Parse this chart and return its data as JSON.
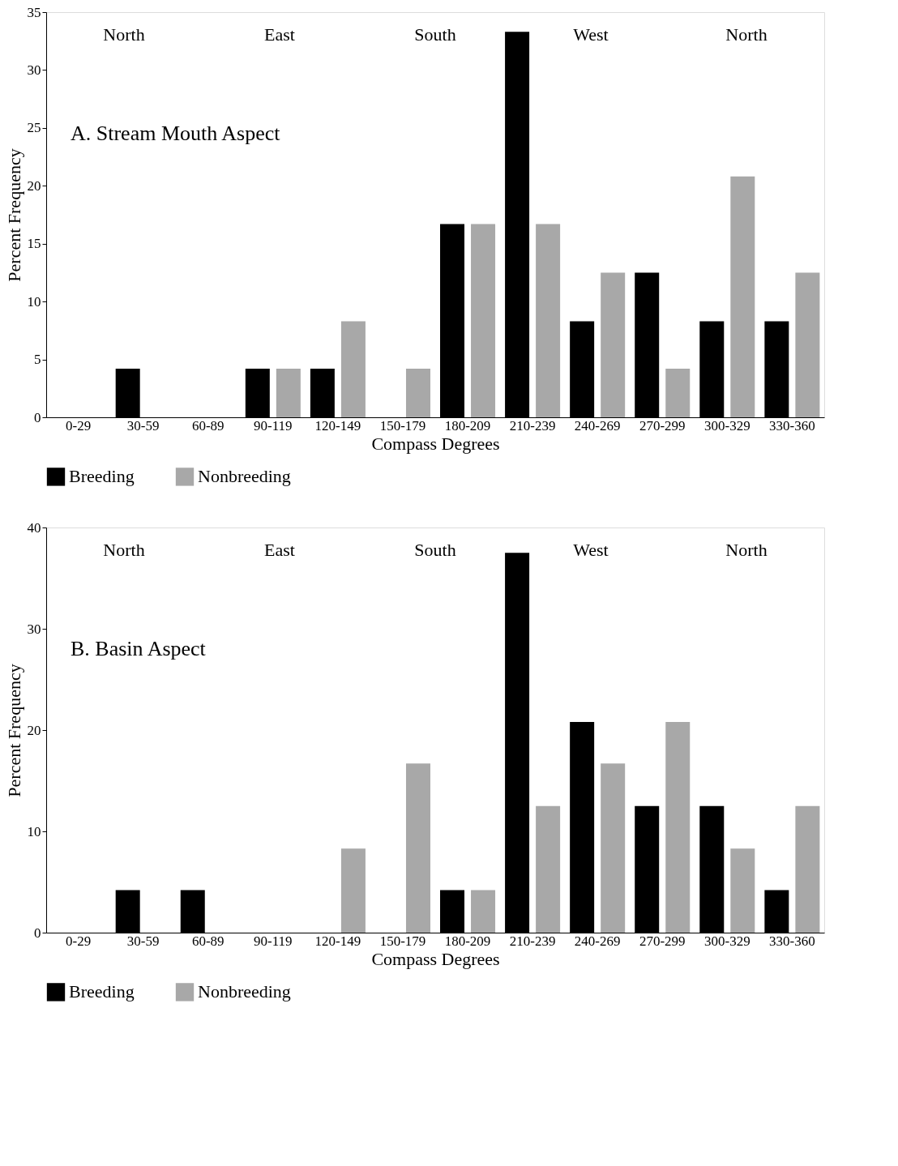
{
  "chart_data": [
    {
      "type": "bar",
      "title": "A.  Stream Mouth Aspect",
      "xlabel": "Compass Degrees",
      "ylabel": "Percent Frequency",
      "categories": [
        "0-29",
        "30-59",
        "60-89",
        "90-119",
        "120-149",
        "150-179",
        "180-209",
        "210-239",
        "240-269",
        "270-299",
        "300-329",
        "330-360"
      ],
      "series": [
        {
          "name": "Breeding",
          "color": "#000000",
          "values": [
            0,
            4.2,
            0,
            4.2,
            4.2,
            0,
            16.7,
            33.3,
            8.3,
            12.5,
            8.3,
            8.3
          ]
        },
        {
          "name": "Nonbreeding",
          "color": "#a8a8a8",
          "values": [
            0,
            0,
            0,
            4.2,
            8.3,
            4.2,
            16.7,
            16.7,
            12.5,
            4.2,
            20.8,
            12.5
          ]
        }
      ],
      "ylim": [
        0,
        35
      ],
      "yticks": [
        0,
        5,
        10,
        15,
        20,
        25,
        30,
        35
      ],
      "grid": false,
      "legend": "bottom",
      "annotations": [
        "North",
        "East",
        "South",
        "West",
        "North"
      ]
    },
    {
      "type": "bar",
      "title": "B.  Basin Aspect",
      "xlabel": "Compass Degrees",
      "ylabel": "Percent Frequency",
      "categories": [
        "0-29",
        "30-59",
        "60-89",
        "90-119",
        "120-149",
        "150-179",
        "180-209",
        "210-239",
        "240-269",
        "270-299",
        "300-329",
        "330-360"
      ],
      "series": [
        {
          "name": "Breeding",
          "color": "#000000",
          "values": [
            0,
            4.2,
            4.2,
            0,
            0,
            0,
            4.2,
            37.5,
            20.8,
            12.5,
            12.5,
            4.2
          ]
        },
        {
          "name": "Nonbreeding",
          "color": "#a8a8a8",
          "values": [
            0,
            0,
            0,
            0,
            8.3,
            16.7,
            4.2,
            12.5,
            16.7,
            20.8,
            8.3,
            12.5
          ]
        }
      ],
      "ylim": [
        0,
        40
      ],
      "yticks": [
        0,
        10,
        20,
        30,
        40
      ],
      "grid": false,
      "legend": "bottom",
      "annotations": [
        "North",
        "East",
        "South",
        "West",
        "North"
      ]
    }
  ]
}
